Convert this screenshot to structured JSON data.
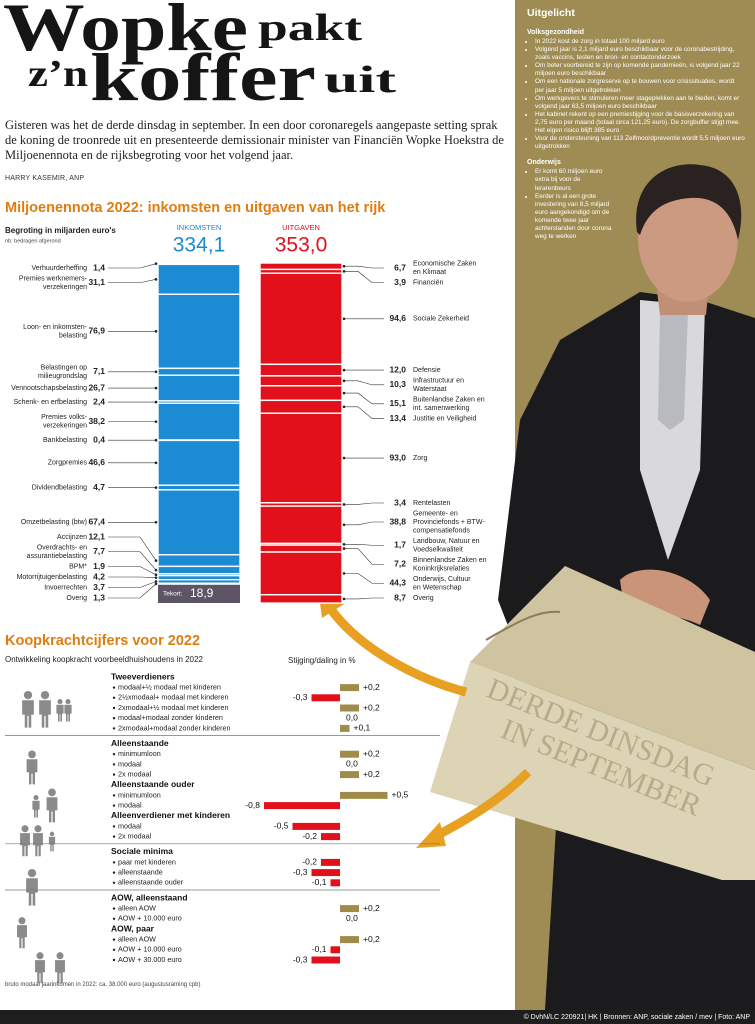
{
  "header": {
    "title": [
      "Wopke",
      "pakt",
      "z’n",
      "koffer",
      "uit"
    ],
    "intro": "Gisteren was het de derde dinsdag in september. In een door coronaregels aangepaste setting sprak de koning de troonrede uit en presenteerde demissionair minister van Financiën Wopke Hoekstra de Miljoenennota en de rijksbegroting voor het volgend jaar.",
    "byline": "HARRY KASEMIR, ANP"
  },
  "chart_data": [
    {
      "type": "budget-columns",
      "title": "Miljoenennota 2022: inkomsten en uitgaven van het rijk",
      "subtitle": "Begroting in miljarden euro's",
      "note": "nb: bedragen afgerond",
      "series": [
        {
          "name": "INKOMSTEN",
          "color": "#1b8bd3",
          "total": 334.1,
          "total_label": "334,1",
          "categories": [
            [
              "Verhuurderheffing"
            ],
            [
              "Premies werknemers-",
              "verzekeringen"
            ],
            [
              "Loon- en inkomsten-",
              "belasting"
            ],
            [
              "Belastingen op",
              "milieugrondslag"
            ],
            [
              "Vennootschapsbelasting"
            ],
            [
              "Schenk- en erfbelasting"
            ],
            [
              "Premies volks-",
              "verzekeringen"
            ],
            [
              "Bankbelasting"
            ],
            [
              "Zorgpremies"
            ],
            [
              "Dividendbelasting"
            ],
            [
              "Omzetbelasting (btw)"
            ],
            [
              "Accijnzen"
            ],
            [
              "Overdrachts- en",
              "assurantiebelasting"
            ],
            [
              "BPM*"
            ],
            [
              "Motorrijtuigenbelasting"
            ],
            [
              "Invoerrechten"
            ],
            [
              "Overig"
            ]
          ],
          "values": [
            1.4,
            31.1,
            76.9,
            7.1,
            26.7,
            2.4,
            38.2,
            0.4,
            46.6,
            4.7,
            67.4,
            12.1,
            7.7,
            1.9,
            4.2,
            3.7,
            1.3
          ],
          "value_labels": [
            "1,4",
            "31,1",
            "76,9",
            "7,1",
            "26,7",
            "2,4",
            "38,2",
            "0,4",
            "46,6",
            "4,7",
            "67,4",
            "12,1",
            "7,7",
            "1,9",
            "4,2",
            "3,7",
            "1,3"
          ]
        },
        {
          "name": "UITGAVEN",
          "color": "#e2101b",
          "total": 353.0,
          "total_label": "353,0",
          "categories": [
            [
              "Economische Zaken",
              "en Klimaat"
            ],
            [
              "Financiën"
            ],
            [
              "Sociale Zekerheid"
            ],
            [
              "Defensie"
            ],
            [
              "Infrastructuur en",
              "Waterstaat"
            ],
            [
              "Buitenlandse Zaken en",
              "int. samenwerking"
            ],
            [
              "Justitie en Veiligheid"
            ],
            [
              "Zorg"
            ],
            [
              "Rentelasten"
            ],
            [
              "Gemeente- en",
              "Provinciefonds + BTW-",
              "compensatiefonds"
            ],
            [
              "Landbouw, Natuur en",
              "Voedselkwaliteit"
            ],
            [
              "Binnenlandse Zaken en",
              "Koninkrijksrelaties"
            ],
            [
              "Onderwijs, Cultuur",
              "en Wetenschap"
            ],
            [
              "Overig"
            ]
          ],
          "values": [
            6.7,
            3.9,
            94.6,
            12.0,
            10.3,
            15.1,
            13.4,
            93.0,
            3.4,
            38.8,
            1.7,
            7.2,
            44.3,
            8.7
          ],
          "value_labels": [
            "6,7",
            "3,9",
            "94,6",
            "12,0",
            "10,3",
            "15,1",
            "13,4",
            "93,0",
            "3,4",
            "38,8",
            "1,7",
            "7,2",
            "44,3",
            "8,7"
          ]
        }
      ],
      "deficit": {
        "name": "Tekort:",
        "value": 18.9,
        "value_label": "18,9",
        "color": "#5d5566"
      }
    },
    {
      "type": "bar",
      "orientation": "horizontal",
      "title": "Koopkrachtcijfers voor 2022",
      "subtitle": "Ontwikkeling koopkracht voorbeeldhuishoudens in 2022",
      "value_axis_label": "Stijging/daling in %",
      "positive_color": "#a08c4a",
      "negative_color": "#e2101b",
      "note": "bruto modaal jaarinkomen in 2022: ca. 38.000 euro (augustusraming cpb)",
      "sections": [
        {
          "groups": [
            {
              "name": "Tweeverdieners",
              "categories": [
                "modaal+½ modaal met kinderen",
                "2½xmodaal+ modaal met kinderen",
                "2xmodaal+½ modaal met kinderen",
                "modaal+modaal zonder kinderen",
                "2xmodaal+modaal zonder kinderen"
              ],
              "values": [
                0.2,
                -0.3,
                0.2,
                0.0,
                0.1
              ],
              "value_labels": [
                "+0,2",
                "-0,3",
                "+0,2",
                "0,0",
                "+0,1"
              ]
            }
          ]
        },
        {
          "groups": [
            {
              "name": "Alleenstaande",
              "categories": [
                "minimumloon",
                "modaal",
                "2x modaal"
              ],
              "values": [
                0.2,
                0.0,
                0.2
              ],
              "value_labels": [
                "+0,2",
                "0,0",
                "+0,2"
              ]
            },
            {
              "name": "Alleenstaande ouder",
              "categories": [
                "minimumloon",
                "modaal"
              ],
              "values": [
                0.5,
                -0.8
              ],
              "value_labels": [
                "+0,5",
                "-0,8"
              ]
            },
            {
              "name": "Alleenverdiener met kinderen",
              "categories": [
                "modaal",
                "2x modaal"
              ],
              "values": [
                -0.5,
                -0.2
              ],
              "value_labels": [
                "-0,5",
                "-0,2"
              ]
            }
          ]
        },
        {
          "groups": [
            {
              "name": "Sociale minima",
              "categories": [
                "paar met kinderen",
                "alleenstaande",
                "alleenstaande ouder"
              ],
              "values": [
                -0.2,
                -0.3,
                -0.1
              ],
              "value_labels": [
                "-0,2",
                "-0,3",
                "-0,1"
              ]
            }
          ]
        },
        {
          "groups": [
            {
              "name": "AOW, alleenstaand",
              "categories": [
                "alleen AOW",
                "AOW + 10.000 euro"
              ],
              "values": [
                0.2,
                0.0
              ],
              "value_labels": [
                "+0,2",
                "0,0"
              ]
            },
            {
              "name": "AOW, paar",
              "categories": [
                "alleen AOW",
                "AOW + 10.000 euro",
                "AOW + 30.000 euro"
              ],
              "values": [
                0.2,
                -0.1,
                -0.3
              ],
              "value_labels": [
                "+0,2",
                "-0,1",
                "-0,3"
              ]
            }
          ]
        }
      ]
    }
  ],
  "sidebar": {
    "title": "Uitgelicht",
    "sections": [
      {
        "heading": "Volksgezondheid",
        "items": [
          "In 2022 kost de zorg in totaal 100 miljard euro",
          "Volgend jaar is 2,1 miljard euro beschikbaar voor de coronabestrijding, zoals vaccins, testen en bron- en contactonderzoek",
          "Om beter voorbereid te zijn op komende pandemieën, is volgend jaar 22 miljoen euro beschikbaar",
          "Om een nationale zorgreserve op te bouwen voor crisissituaties, wordt per jaar 5 miljoen uitgetrokken",
          "Om werkgevers te stimuleren meer stageplekken aan te bieden, komt er volgend jaar 63,5 miljoen euro beschikbaar",
          "Het kabinet rekent op een premiestijging voor de basisverzekering van 2,75 euro per maand (totaal circa 121,25 euro). De zorgbuffer stijgt mee. Het eigen risico blijft 385 euro",
          "Voor de ondersteuning van 113 Zelfmoordpreventie wordt 5,5 miljoen euro uitgetrokken"
        ]
      },
      {
        "heading": "Onderwijs",
        "items": [
          "Er komt 60 miljoen euro extra bij voor de lerarenbeurs",
          "Eerder is al een grote investering van 8,5 miljard euro aangekondigd om de komende twee jaar achterstanden door corona weg te werken"
        ]
      }
    ]
  },
  "photo": {
    "case_text": [
      "DERDE DINSDAG",
      "IN SEPTEMBER"
    ]
  },
  "footer": "© DvhN/LC 220921| HK | Bronnen: ANP, sociale zaken / mev | Foto: ANP"
}
